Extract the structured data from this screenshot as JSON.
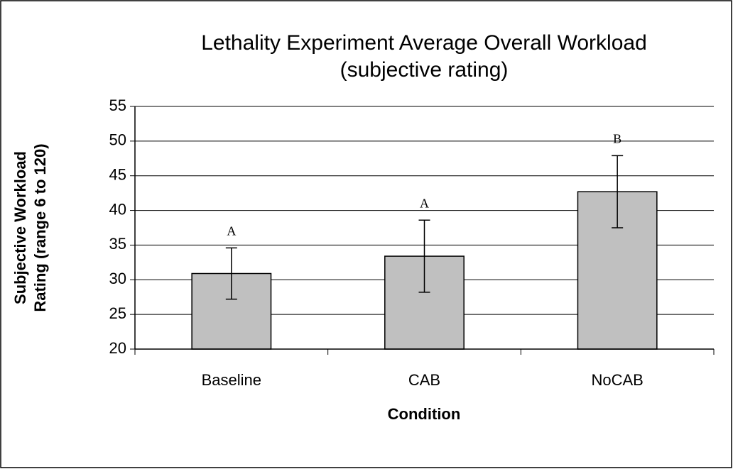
{
  "chart_data": {
    "type": "bar",
    "title": [
      "Lethality Experiment Average Overall Workload",
      "(subjective rating)"
    ],
    "y_label": [
      "Subjective Workload",
      "Rating (range 6 to 120)"
    ],
    "x_label": "Condition",
    "categories": [
      "Baseline",
      "CAB",
      "NoCAB"
    ],
    "values": [
      30.9,
      33.4,
      42.7
    ],
    "errors": [
      3.7,
      5.2,
      5.2
    ],
    "annotations": [
      "A",
      "A",
      "B"
    ],
    "color": "#c0c0c0",
    "ylim": [
      20,
      55
    ],
    "yticks": [
      20,
      25,
      30,
      35,
      40,
      45,
      50,
      55
    ],
    "grid": true
  }
}
